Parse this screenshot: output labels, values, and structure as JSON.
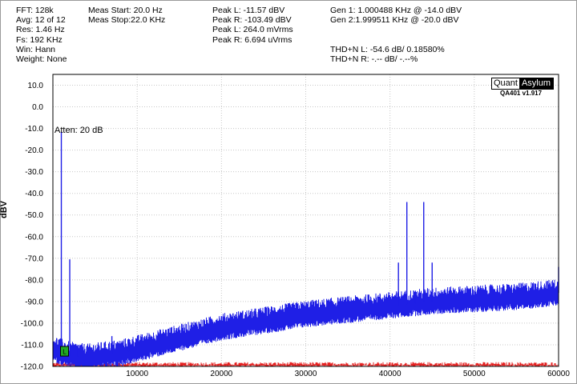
{
  "info": {
    "col1": [
      "FFT: 128k",
      "Avg: 12 of 12",
      "Res: 1.46 Hz",
      "Fs: 192 KHz",
      "Win: Hann",
      "Weight: None"
    ],
    "col2": [
      "Meas Start: 20.0 Hz",
      "Meas Stop:22.0 KHz"
    ],
    "col3": [
      "Peak L: -11.57 dBV",
      "Peak R: -103.49 dBV",
      "Peak L: 264.0 mVrms",
      "Peak R: 6.694 uVrms"
    ],
    "col4": [
      "Gen 1: 1.000488 KHz @ -14.0  dBV",
      "Gen 2:1.999511 KHz @ -20.0  dBV"
    ],
    "col5": [
      "THD+N L: -54.6 dB/ 0.18580%",
      "THD+N R: -.-- dB/ -.--%"
    ]
  },
  "logo": {
    "part1": "Quant",
    "part2": "Asylum",
    "version": "QA401 v1.917"
  },
  "annotation": "Atten: 20 dB",
  "marker_label": "L",
  "colors": {
    "left": "#1f1fe6",
    "right": "#e62020",
    "grid": "#c8c8c8",
    "marker": "#22aa22"
  },
  "chart_data": {
    "type": "line",
    "xlabel": "",
    "ylabel": "dBV",
    "xlim": [
      0,
      60000
    ],
    "ylim": [
      -120,
      15
    ],
    "x_ticks": [
      10000,
      20000,
      30000,
      40000,
      50000,
      60000
    ],
    "x_tick_labels": [
      "10000",
      "20000",
      "30000",
      "40000",
      "50000",
      "60000"
    ],
    "y_ticks": [
      10,
      0,
      -10,
      -20,
      -30,
      -40,
      -50,
      -60,
      -70,
      -80,
      -90,
      -100,
      -110,
      -120
    ],
    "y_tick_labels": [
      "10.0",
      "0.0",
      "-10.0",
      "-20.0",
      "-30.0",
      "-40.0",
      "-50.0",
      "-60.0",
      "-70.0",
      "-80.0",
      "-90.0",
      "-100.0",
      "-110.0",
      "-120.0"
    ],
    "grid": true,
    "series": [
      {
        "channel": "left",
        "noise_floor": {
          "x": [
            0,
            2000,
            4000,
            6000,
            8000,
            10000,
            12000,
            15000,
            20000,
            25000,
            30000,
            35000,
            40000,
            45000,
            50000,
            55000,
            60000
          ],
          "y": [
            -112,
            -115,
            -116,
            -115,
            -114,
            -112,
            -110,
            -107,
            -102,
            -99,
            -96,
            -94,
            -92,
            -90,
            -89,
            -88,
            -86
          ]
        },
        "peaks": {
          "x": [
            1000,
            2000,
            3000,
            7000,
            9000,
            41000,
            42000,
            43000,
            44000,
            45000,
            60000
          ],
          "y": [
            -11.6,
            -70.5,
            -110,
            -106,
            -110,
            -72,
            -44,
            -88,
            -44,
            -72,
            -74
          ]
        }
      },
      {
        "channel": "right",
        "noise_floor": {
          "x": [
            0,
            60000
          ],
          "y": [
            -119.5,
            -119.5
          ]
        }
      }
    ]
  }
}
